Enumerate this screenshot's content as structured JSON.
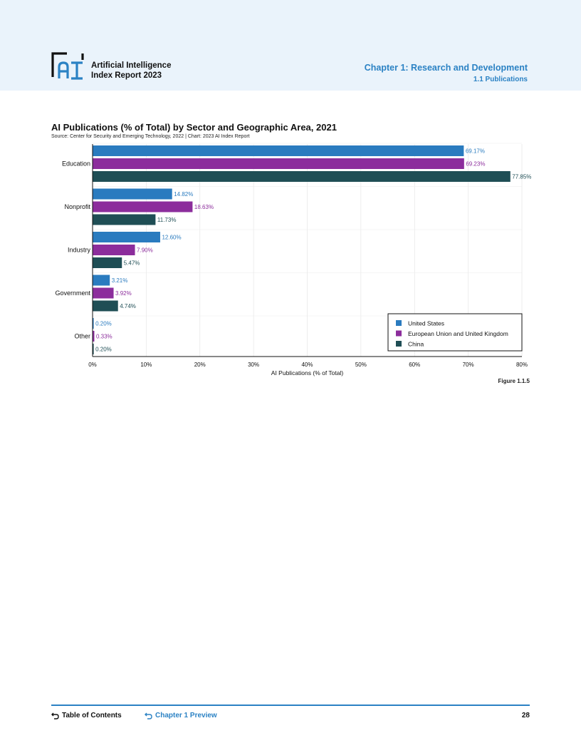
{
  "header": {
    "logo_text": "AI",
    "report_title_line1": "Artificial Intelligence",
    "report_title_line2": "Index Report 2023",
    "chapter": "Chapter 1: Research and Development",
    "section": "1.1 Publications"
  },
  "colors": {
    "united_states": "#2a7bbf",
    "eu_uk": "#8c2d9c",
    "china": "#1f4e55",
    "accent": "#2b82c4",
    "header_bg": "#eaf3fb"
  },
  "chart_data": {
    "type": "bar",
    "orientation": "horizontal",
    "title": "AI Publications (% of Total) by Sector and Geographic Area, 2021",
    "subtitle": "Source: Center for Security and Emerging Technology, 2022 | Chart: 2023 AI Index Report",
    "xlabel": "AI Publications (% of Total)",
    "ylabel": "",
    "xlim": [
      0,
      80
    ],
    "xticks": [
      "0%",
      "10%",
      "20%",
      "30%",
      "40%",
      "50%",
      "60%",
      "70%",
      "80%"
    ],
    "categories": [
      "Education",
      "Nonprofit",
      "Industry",
      "Government",
      "Other"
    ],
    "series": [
      {
        "name": "United States",
        "values": [
          69.17,
          14.82,
          12.6,
          3.21,
          0.2
        ],
        "labels": [
          "69.17%",
          "14.82%",
          "12.60%",
          "3.21%",
          "0.20%"
        ]
      },
      {
        "name": "European Union and United Kingdom",
        "values": [
          69.23,
          18.63,
          7.9,
          3.92,
          0.33
        ],
        "labels": [
          "69.23%",
          "18.63%",
          "7.90%",
          "3.92%",
          "0.33%"
        ]
      },
      {
        "name": "China",
        "values": [
          77.85,
          11.73,
          5.47,
          4.74,
          0.2
        ],
        "labels": [
          "77.85%",
          "11.73%",
          "5.47%",
          "4.74%",
          "0.20%"
        ]
      }
    ],
    "grid": true,
    "legend_position": "bottom-right"
  },
  "figure_label": "Figure 1.1.5",
  "footer": {
    "toc_label": "Table of Contents",
    "chapter_preview_label": "Chapter 1 Preview",
    "page_number": "28"
  }
}
